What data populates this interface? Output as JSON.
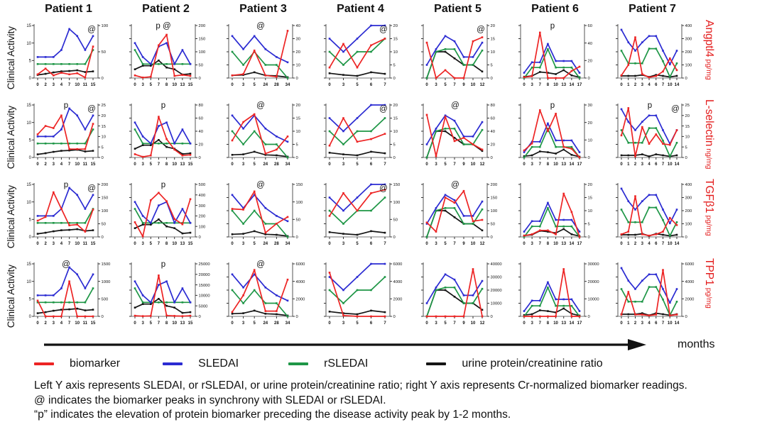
{
  "axis": {
    "x_arrow_label": "months"
  },
  "legend": {
    "items": [
      {
        "label": "biomarker",
        "color": "#ed2424"
      },
      {
        "label": "SLEDAI",
        "color": "#2b2bd2"
      },
      {
        "label": "rSLEDAI",
        "color": "#1e9646"
      },
      {
        "label": "urine protein/creatinine ratio",
        "color": "#151515"
      }
    ]
  },
  "caption": {
    "line1": "Left Y axis represents SLEDAI, or rSLEDAI, or urine protein/creatinine ratio; right Y axis represents Cr-normalized biomarker readings.",
    "line2": "@ indicates the biomarker peaks in synchrony with SLEDAI or rSLEDAI.",
    "line3": "“p” indicates the elevation of protein biomarker preceding the disease activity peak by 1-2 months."
  },
  "chart_data": {
    "type": "line",
    "left_axis_label": "Clinical Activity",
    "series_colors": {
      "biomarker": "#ed2424",
      "sledai": "#2b2bd2",
      "rsledai": "#1e9646",
      "urine": "#151515"
    },
    "patients": [
      {
        "name": "Patient 1",
        "x": [
          0,
          2,
          3,
          4,
          7,
          10,
          11,
          15
        ],
        "left_max": 15,
        "left_ticks": [
          0,
          5,
          10,
          15
        ],
        "sledai": [
          6,
          6,
          6,
          8,
          14,
          12,
          8,
          12
        ],
        "rsledai": [
          4,
          4,
          4,
          4,
          4,
          4,
          4,
          8
        ],
        "urine": [
          0.9,
          1.2,
          1.6,
          1.9,
          2,
          2.2,
          1.7,
          1.9
        ]
      },
      {
        "name": "Patient 2",
        "x": [
          0,
          3,
          5,
          7,
          8,
          10,
          13,
          15
        ],
        "left_max": 15,
        "left_ticks": [],
        "sledai": [
          10,
          6,
          4,
          9,
          10,
          4,
          8,
          4
        ],
        "rsledai": [
          8,
          4,
          4,
          4,
          4,
          4,
          4,
          4
        ],
        "urine": [
          2.5,
          3.5,
          3.5,
          5,
          3,
          2.5,
          1,
          1.2
        ]
      },
      {
        "name": "Patient 3",
        "x": [
          0,
          3,
          5,
          24,
          28,
          34
        ],
        "left_max": 20,
        "left_ticks": [],
        "sledai": [
          16,
          11,
          16,
          11,
          8,
          6
        ],
        "rsledai": [
          10,
          5,
          10,
          5,
          5,
          0
        ],
        "urine": [
          1,
          1.2,
          2.2,
          1,
          0.8,
          0.3
        ]
      },
      {
        "name": "Patient 4",
        "x": [
          0,
          3,
          5,
          6,
          7
        ],
        "left_max": 20,
        "left_ticks": [],
        "sledai": [
          15,
          10,
          15,
          20,
          20
        ],
        "rsledai": [
          10,
          5,
          10,
          10,
          15
        ],
        "urine": [
          1.8,
          1.2,
          0.8,
          2.2,
          1.6
        ]
      },
      {
        "name": "Patient 5",
        "x": [
          0,
          3,
          5,
          7,
          9,
          10,
          12
        ],
        "left_max": 20,
        "left_ticks": [],
        "sledai": [
          5,
          11,
          16,
          14,
          8,
          8,
          13.5
        ],
        "rsledai": [
          0,
          10,
          11,
          11,
          5,
          5,
          10.5
        ],
        "urine": [
          0,
          10,
          10,
          7.5,
          5,
          5,
          2.5
        ]
      },
      {
        "name": "Patient 6",
        "x": [
          0,
          3,
          7,
          8,
          10,
          13,
          14,
          17
        ],
        "left_max": 20,
        "left_ticks": [],
        "sledai": [
          2,
          6,
          6,
          13,
          6.5,
          6.5,
          6.5,
          2
        ],
        "rsledai": [
          0,
          4,
          4,
          11,
          4,
          4,
          4,
          0
        ],
        "urine": [
          0.5,
          0.8,
          2.3,
          2,
          1.5,
          3,
          1,
          0.3
        ]
      },
      {
        "name": "Patient 7",
        "x": [
          0,
          1,
          2,
          3,
          4,
          6,
          7,
          10,
          14
        ],
        "left_max": 25,
        "left_ticks": [],
        "sledai": [
          23,
          17,
          13,
          17,
          20,
          20,
          13,
          6.5,
          13
        ],
        "rsledai": [
          13,
          7,
          7,
          7,
          14,
          14,
          8,
          0.5,
          7
        ],
        "urine": [
          1,
          1,
          1,
          1.5,
          0.5,
          1.5,
          1,
          0.5,
          1
        ]
      }
    ],
    "rows": [
      {
        "label": "Angptl4",
        "unit": "pg/mg",
        "cells": [
          {
            "right_max": 100,
            "right_ticks": [
              0,
              50,
              100
            ],
            "annotations": [
              {
                "text": "@",
                "pos": "right"
              }
            ],
            "biomarker": [
              7,
              18,
              5,
              10,
              7,
              9,
              1,
              60
            ]
          },
          {
            "right_max": 200,
            "right_ticks": [
              0,
              50,
              100,
              150,
              200
            ],
            "annotations": [
              {
                "text": "p @",
                "pos": "center"
              }
            ],
            "biomarker": [
              10,
              2,
              5,
              125,
              165,
              8,
              12,
              8
            ]
          },
          {
            "right_max": 40,
            "right_ticks": [
              0,
              10,
              20,
              30,
              40
            ],
            "annotations": [
              {
                "text": "@",
                "pos": "center"
              }
            ],
            "biomarker": [
              2,
              3,
              21,
              2,
              1,
              36
            ]
          },
          {
            "right_max": 20,
            "right_ticks": [
              0,
              5,
              10,
              15,
              20
            ],
            "annotations": [
              {
                "text": "@",
                "pos": "right"
              }
            ],
            "biomarker": [
              4,
              13,
              4,
              12.5,
              15
            ]
          },
          {
            "right_max": 20,
            "right_ticks": [
              0,
              5,
              10,
              15,
              20
            ],
            "annotations": [
              {
                "text": "@",
                "pos": "right"
              }
            ],
            "biomarker": [
              13.5,
              0,
              3,
              0,
              0,
              14,
              15.5
            ]
          },
          {
            "right_max": 60,
            "right_ticks": [
              0,
              20,
              40,
              60
            ],
            "annotations": [
              {
                "text": "p",
                "pos": "center"
              }
            ],
            "biomarker": [
              1,
              2,
              52,
              0,
              0,
              0,
              8,
              13
            ]
          },
          {
            "right_max": 400,
            "right_ticks": [
              0,
              100,
              200,
              300,
              400
            ],
            "annotations": [],
            "biomarker": [
              20,
              100,
              310,
              30,
              5,
              15,
              50,
              150,
              60
            ]
          }
        ]
      },
      {
        "label": "L-selectin",
        "unit": "ng/mg",
        "cells": [
          {
            "right_max": 25,
            "right_ticks": [
              0,
              5,
              10,
              15,
              20,
              25
            ],
            "annotations": [
              {
                "text": "p",
                "pos": "center"
              },
              {
                "text": "@",
                "pos": "right"
              }
            ],
            "biomarker": [
              11,
              15,
              14,
              20,
              4,
              4,
              4,
              16
            ]
          },
          {
            "right_max": 80,
            "right_ticks": [
              0,
              20,
              40,
              60,
              80
            ],
            "annotations": [
              {
                "text": "p",
                "pos": "center"
              }
            ],
            "biomarker": [
              5,
              1,
              3,
              62,
              28,
              12,
              3,
              4
            ]
          },
          {
            "right_max": 20,
            "right_ticks": [
              0,
              5,
              10,
              15,
              20
            ],
            "annotations": [
              {
                "text": "@",
                "pos": "center"
              }
            ],
            "biomarker": [
              6.5,
              13.5,
              16.5,
              1.5,
              3,
              8
            ]
          },
          {
            "right_max": 20,
            "right_ticks": [
              0,
              5,
              10,
              15,
              20
            ],
            "annotations": [
              {
                "text": "@",
                "pos": "right"
              }
            ],
            "biomarker": [
              4.5,
              15,
              6,
              7,
              9
            ]
          },
          {
            "right_max": 80,
            "right_ticks": [
              0,
              20,
              40,
              60,
              80
            ],
            "annotations": [
              {
                "text": "@",
                "pos": "center"
              }
            ],
            "biomarker": [
              65,
              2,
              62,
              25,
              30,
              20,
              12
            ]
          },
          {
            "right_max": 30,
            "right_ticks": [
              0,
              10,
              20,
              30
            ],
            "annotations": [
              {
                "text": "p",
                "pos": "center"
              }
            ],
            "biomarker": [
              4,
              8,
              27,
              15,
              25,
              6,
              5,
              0
            ]
          },
          {
            "right_max": 25,
            "right_ticks": [
              0,
              5,
              10,
              15,
              20,
              25
            ],
            "annotations": [
              {
                "text": "p",
                "pos": "center"
              },
              {
                "text": "@",
                "pos": "right"
              }
            ],
            "biomarker": [
              10.5,
              23.5,
              0.5,
              14.5,
              6.5,
              11,
              6.5,
              6,
              13
            ]
          }
        ]
      },
      {
        "label": "TGFβ1",
        "unit": "pg/mg",
        "cells": [
          {
            "right_max": 200,
            "right_ticks": [
              0,
              50,
              100,
              150,
              200
            ],
            "annotations": [
              {
                "text": "p",
                "pos": "center"
              },
              {
                "text": "@",
                "pos": "right"
              }
            ],
            "biomarker": [
              62,
              76,
              170,
              107,
              44,
              47,
              20,
              104
            ]
          },
          {
            "right_max": 500,
            "right_ticks": [
              0,
              100,
              200,
              300,
              400,
              500
            ],
            "annotations": [
              {
                "text": "p",
                "pos": "center"
              }
            ],
            "biomarker": [
              140,
              5,
              350,
              420,
              340,
              170,
              120,
              360
            ]
          },
          {
            "right_max": 150,
            "right_ticks": [
              0,
              50,
              100,
              150
            ],
            "annotations": [
              {
                "text": "@",
                "pos": "center"
              }
            ],
            "biomarker": [
              80,
              78,
              130,
              12,
              38,
              57
            ]
          },
          {
            "right_max": 150,
            "right_ticks": [
              0,
              50,
              100,
              150
            ],
            "annotations": [
              {
                "text": "@",
                "pos": "right"
              }
            ],
            "biomarker": [
              60,
              125,
              75,
              125,
              135
            ]
          },
          {
            "right_max": 200,
            "right_ticks": [
              0,
              50,
              100,
              150,
              200
            ],
            "annotations": [
              {
                "text": "@",
                "pos": "center"
              }
            ],
            "biomarker": [
              55,
              20,
              150,
              130,
              175,
              60,
              65
            ]
          },
          {
            "right_max": 20,
            "right_ticks": [
              0,
              5,
              10,
              15,
              20
            ],
            "annotations": [],
            "biomarker": [
              0.5,
              1,
              2.5,
              2.5,
              1,
              16.5,
              9.5,
              0
            ]
          },
          {
            "right_max": 400,
            "right_ticks": [
              0,
              100,
              200,
              300,
              400
            ],
            "annotations": [],
            "biomarker": [
              20,
              40,
              310,
              20,
              10,
              20,
              40,
              145,
              90
            ]
          }
        ]
      },
      {
        "label": "TPP1",
        "unit": "pg/mg",
        "cells": [
          {
            "right_max": 1500,
            "right_ticks": [
              0,
              500,
              1000,
              1500
            ],
            "annotations": [
              {
                "text": "@",
                "pos": "center"
              }
            ],
            "biomarker": [
              450,
              0,
              0,
              0,
              1000,
              0,
              0,
              0
            ]
          },
          {
            "right_max": 25000,
            "right_ticks": [
              0,
              5000,
              10000,
              15000,
              20000,
              25000
            ],
            "annotations": [
              {
                "text": "p",
                "pos": "center"
              }
            ],
            "biomarker": [
              300,
              100,
              200,
              19500,
              400,
              200,
              100,
              300
            ]
          },
          {
            "right_max": 6000,
            "right_ticks": [
              0,
              2000,
              4000,
              6000
            ],
            "annotations": [
              {
                "text": "@",
                "pos": "center"
              }
            ],
            "biomarker": [
              500,
              2400,
              5300,
              600,
              600,
              4200
            ]
          },
          {
            "right_max": 6000,
            "right_ticks": [
              0,
              2000,
              4000,
              6000
            ],
            "annotations": [],
            "biomarker": [
              5000,
              100,
              0,
              0,
              0
            ]
          },
          {
            "right_max": 40000,
            "right_ticks": [
              0,
              10000,
              20000,
              30000,
              40000
            ],
            "annotations": [],
            "biomarker": [
              0,
              0,
              0,
              0,
              0,
              36000,
              0
            ]
          },
          {
            "right_max": 30000,
            "right_ticks": [
              0,
              10000,
              20000,
              30000
            ],
            "annotations": [],
            "biomarker": [
              0,
              0,
              0,
              0,
              0,
              27000,
              0,
              0
            ]
          },
          {
            "right_max": 6000,
            "right_ticks": [
              0,
              2000,
              4000,
              6000
            ],
            "annotations": [],
            "biomarker": [
              200,
              2800,
              200,
              200,
              100,
              200,
              5300,
              100,
              200
            ]
          }
        ]
      }
    ]
  }
}
